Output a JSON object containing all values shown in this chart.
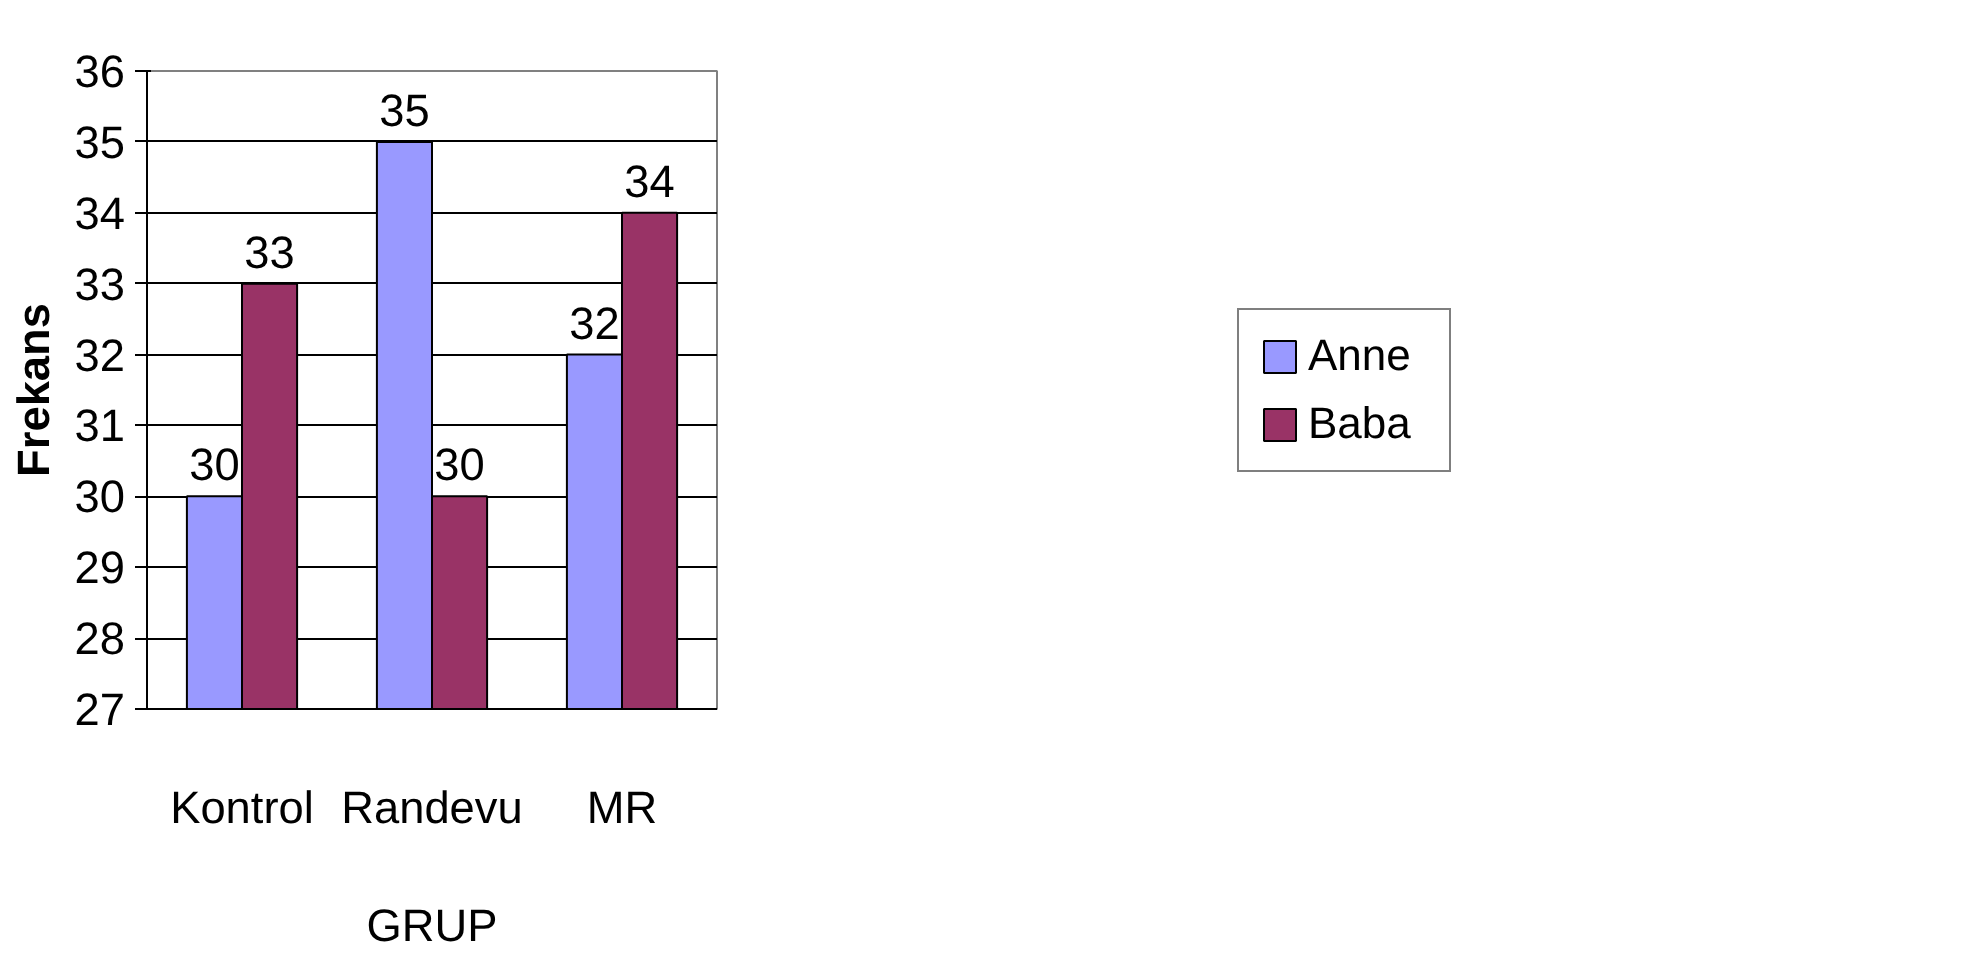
{
  "chart_data": {
    "type": "bar",
    "xlabel": "GRUP",
    "ylabel": "Frekans",
    "categories": [
      "Kontrol",
      "Randevu",
      "MR"
    ],
    "series": [
      {
        "name": "Anne",
        "color": "#9999ff",
        "values": [
          30,
          35,
          32
        ]
      },
      {
        "name": "Baba",
        "color": "#993366",
        "values": [
          33,
          30,
          34
        ]
      }
    ],
    "ylim": [
      27,
      36
    ],
    "yticks": [
      27,
      28,
      29,
      30,
      31,
      32,
      33,
      34,
      35,
      36
    ],
    "grid": "y",
    "legend": "right",
    "data_labels": true
  }
}
